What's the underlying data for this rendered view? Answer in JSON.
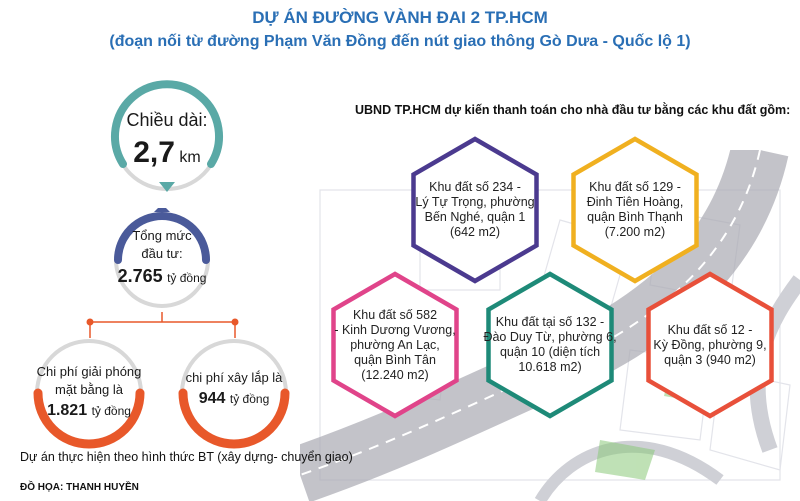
{
  "header": {
    "title": "DỰ ÁN ĐƯỜNG VÀNH ĐAI 2 TP.HCM",
    "subtitle": "(đoạn nối từ đường Phạm Văn Đồng đến nút giao thông Gò Dưa - Quốc lộ 1)"
  },
  "length": {
    "label": "Chiều dài:",
    "value": "2,7",
    "unit": "km"
  },
  "investment": {
    "label_line1": "Tổng mức",
    "label_line2": "đầu tư:",
    "value": "2.765",
    "unit": "tỷ đồng"
  },
  "clearance": {
    "line1": "Chi phí giải phóng",
    "line2": "mặt bằng là",
    "value": "1.821",
    "unit": "tỷ đồng"
  },
  "construction": {
    "line1": "chi phí xây lắp là",
    "value": "944",
    "unit": "tỷ đồng"
  },
  "lands_intro": "UBND TP.HCM dự kiến thanh toán cho nhà đầu tư bằng các khu đất gồm:",
  "lands": [
    {
      "text": "Khu đất số 234 -\nLý Tự Trọng, phường\nBến Nghé, quận 1\n(642 m2)",
      "color": "#4b3a8f"
    },
    {
      "text": "Khu đất số 129 -\nĐinh Tiên Hoàng,\nquận Bình Thạnh\n(7.200 m2)",
      "color": "#f0b020"
    },
    {
      "text": "Khu đất số 582\n- Kinh Dương Vương,\nphường An Lạc,\nquận Bình Tân\n(12.240  m2)",
      "color": "#e0448a"
    },
    {
      "text": "Khu đất tại số 132 -\nĐào Duy Từ, phường 6,\nquận 10 (diện tích\n10.618 m2)",
      "color": "#1e8a78"
    },
    {
      "text": "Khu đất số 12 -\nKỳ Đồng, phường 9,\nquận 3 (940 m2)",
      "color": "#e8503a"
    }
  ],
  "footer": "Dự án thực hiện theo hình thức BT (xây dựng- chuyển giao)",
  "credit": "ĐỒ HỌA: THANH HUYỀN",
  "colors": {
    "title": "#2a6fb5",
    "teal": "#5aa9a6",
    "navy": "#4a5a9a",
    "orange": "#e8582a"
  }
}
